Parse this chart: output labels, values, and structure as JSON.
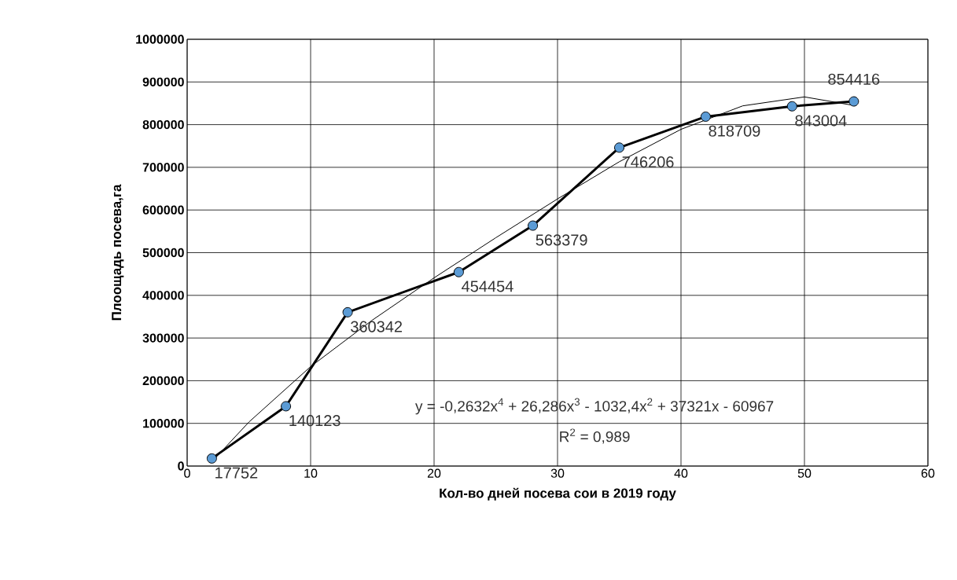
{
  "chart_data": {
    "type": "line",
    "xlabel": "Кол-во дней посева сои в 2019 году",
    "ylabel": "Плоощадь посева,га",
    "series": [
      {
        "color": "#5b9bd5",
        "marker": "circle",
        "x": [
          2,
          8,
          13,
          22,
          28,
          35,
          42,
          49,
          54
        ],
        "values": [
          17752,
          140123,
          360342,
          454454,
          563379,
          746206,
          818709,
          843004,
          854416
        ],
        "value_labels": [
          "17752",
          "140123",
          "360342",
          "454454",
          "563379",
          "746206",
          "818709",
          "843004",
          "854416"
        ]
      },
      {
        "color": "#000000",
        "marker": "none",
        "x": [
          2,
          5,
          10,
          15,
          20,
          25,
          30,
          35,
          40,
          45,
          50,
          54
        ],
        "values": [
          10000,
          103000,
          233000,
          342000,
          441000,
          535000,
          626000,
          713000,
          789000,
          844000,
          865000,
          845000
        ]
      }
    ],
    "annotations": [
      "y = -0,2632x$^{4}$ + 26,286x$^{3}$ - 1032,4x$^{2}$ + 37321x - 60967",
      "R$^{2}$ = 0,989"
    ],
    "xlim": [
      0,
      60
    ],
    "xticks": [
      0,
      10,
      20,
      30,
      40,
      50,
      60
    ],
    "ylim": [
      0,
      1000000
    ],
    "yticks": [
      0,
      100000,
      200000,
      300000,
      400000,
      500000,
      600000,
      700000,
      800000,
      900000,
      1000000
    ],
    "grid": true,
    "line_style": "solid"
  }
}
